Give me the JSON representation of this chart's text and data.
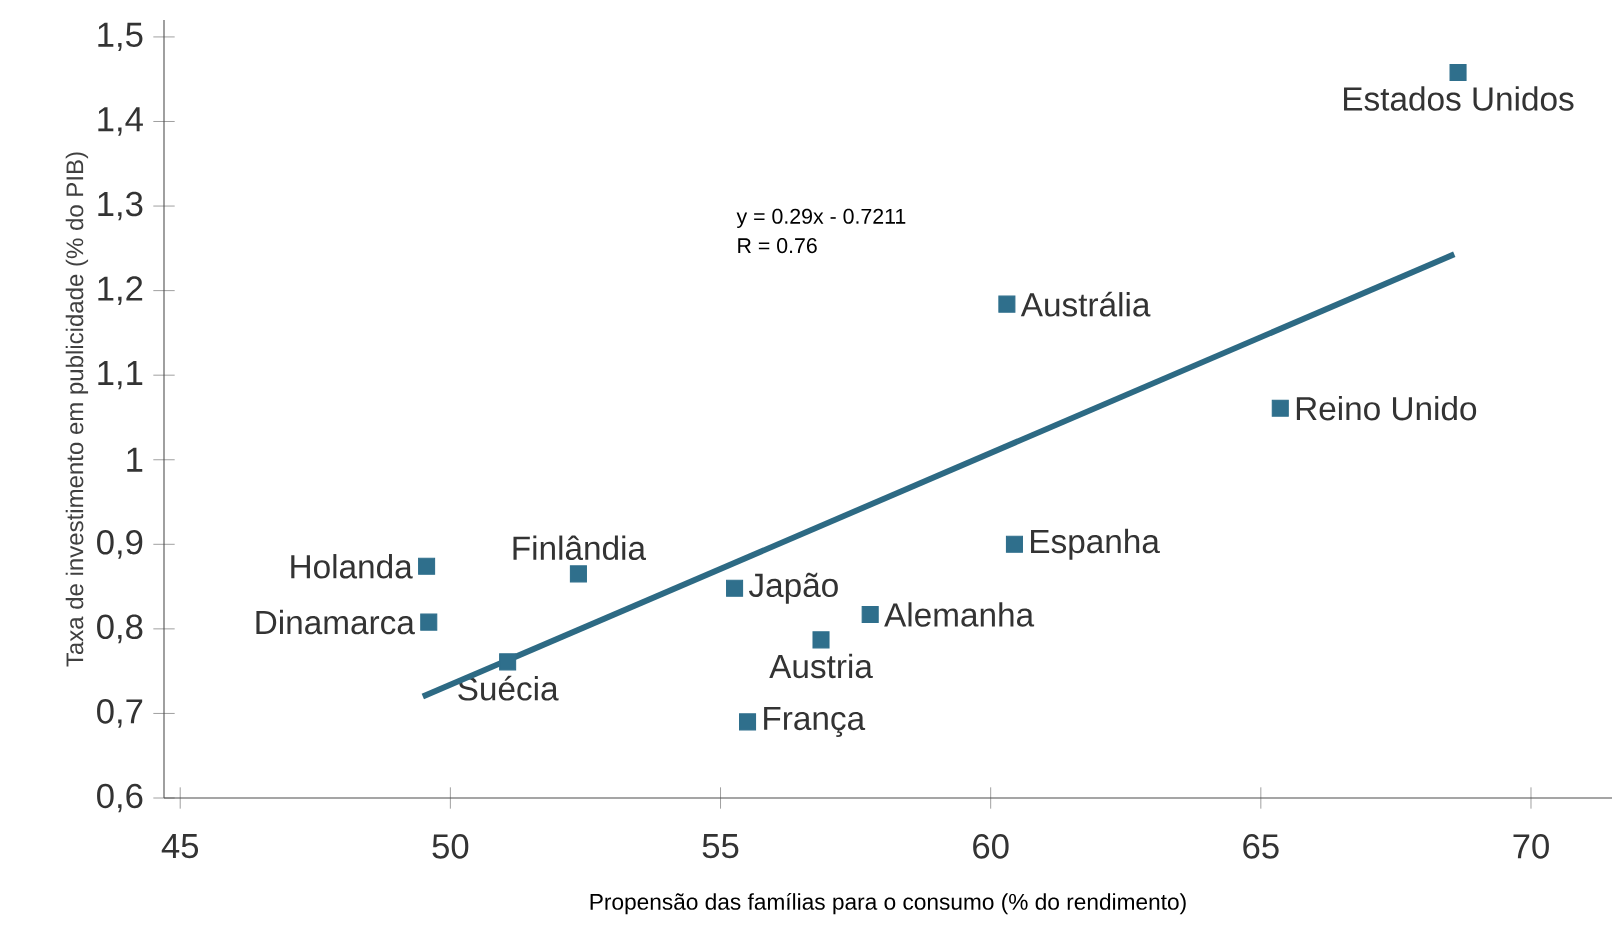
{
  "chart_data": {
    "type": "scatter",
    "xlabel": "Propensão das famílias para o consumo (% do rendimento)",
    "ylabel": "Taxa de investimento em publicidade (% do PIB)",
    "annotations": [
      "y = 0.29x - 0.7211",
      "R = 0.76"
    ],
    "xlim": [
      44.7,
      71.5
    ],
    "ylim": [
      0.6,
      1.52
    ],
    "xticks": [
      45,
      50,
      55,
      60,
      65,
      70
    ],
    "yticks": [
      {
        "value": 0.6,
        "label": "0,6"
      },
      {
        "value": 0.7,
        "label": "0,7"
      },
      {
        "value": 0.8,
        "label": "0,8"
      },
      {
        "value": 0.9,
        "label": "0,9"
      },
      {
        "value": 1,
        "label": "1"
      },
      {
        "value": 1.1,
        "label": "1,1"
      },
      {
        "value": 1.2,
        "label": "1,2"
      },
      {
        "value": 1.3,
        "label": "1,3"
      },
      {
        "value": 1.4,
        "label": "1,4"
      },
      {
        "value": 1.5,
        "label": "1,5"
      }
    ],
    "grid": false,
    "marker": "square",
    "series": [
      {
        "name": "Holanda",
        "color": "#2f6f8c",
        "x": [
          49.56
        ],
        "values": [
          0.874
        ]
      },
      {
        "name": "Dinamarca",
        "color": "#2f6f8c",
        "x": [
          49.6
        ],
        "values": [
          0.808
        ]
      },
      {
        "name": "Suécia",
        "color": "#2f6f8c",
        "x": [
          51.06
        ],
        "values": [
          0.761
        ]
      },
      {
        "name": "Finlândia",
        "color": "#2f6f8c",
        "x": [
          52.37
        ],
        "values": [
          0.865
        ]
      },
      {
        "name": "Japão",
        "color": "#2f6f8c",
        "x": [
          55.26
        ],
        "values": [
          0.848
        ]
      },
      {
        "name": "Austria",
        "color": "#2f6f8c",
        "x": [
          56.86
        ],
        "values": [
          0.787
        ]
      },
      {
        "name": "França",
        "color": "#2f6f8c",
        "x": [
          55.5
        ],
        "values": [
          0.69
        ]
      },
      {
        "name": "Alemanha",
        "color": "#2f6f8c",
        "x": [
          57.77
        ],
        "values": [
          0.817
        ]
      },
      {
        "name": "Espanha",
        "color": "#2f6f8c",
        "x": [
          60.44
        ],
        "values": [
          0.9
        ]
      },
      {
        "name": "Austrália",
        "color": "#2f6f8c",
        "x": [
          60.3
        ],
        "values": [
          1.184
        ]
      },
      {
        "name": "Reino Unido",
        "color": "#2f6f8c",
        "x": [
          65.36
        ],
        "values": [
          1.061
        ]
      },
      {
        "name": "Estados Unidos",
        "color": "#2f6f8c",
        "x": [
          68.65
        ],
        "values": [
          1.458
        ]
      },
      {
        "type": "line",
        "marker": "none",
        "color": "#2d6a84",
        "x": [
          49.49,
          68.58
        ],
        "values": [
          0.72,
          1.243
        ]
      }
    ]
  }
}
